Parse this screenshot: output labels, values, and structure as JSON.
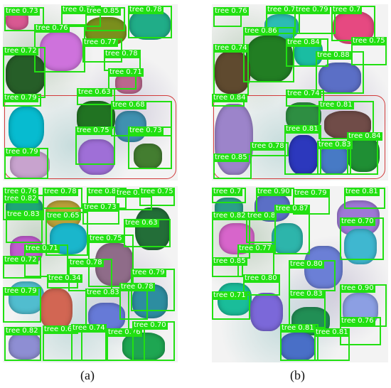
{
  "captions": {
    "a": "(a)",
    "b": "(b)"
  },
  "colors": {
    "box": "#22e012",
    "highlight": "#d23b3b"
  },
  "panels": [
    {
      "id": "a-top",
      "labels": [
        "tree 0.73",
        "tree 0.77",
        "tree 0.85",
        "tree 0.78",
        "tree 0.76",
        "tree 0.72",
        "tree 0.77",
        "tree 0.78",
        "tree 0.71",
        "tree 0.63",
        "tree 0.79",
        "tree 0.68",
        "tree 0.75",
        "tree 0.73",
        "tree 0.79"
      ]
    },
    {
      "id": "b-top",
      "labels": [
        "tree 0.76",
        "tree 0.7",
        "tree 0.79",
        "tree 0.7",
        "tree 0.86",
        "tree 0.84",
        "tree 0.74",
        "tree 0.88",
        "tree 0.75",
        "tree 0.84",
        "tree 0.74",
        "tree 0.81",
        "tree 0.81",
        "tree 0.78",
        "tree 0.84",
        "tree 0.83",
        "tree 0.85"
      ]
    },
    {
      "id": "a-bottom",
      "labels": [
        "tree 0.76",
        "tree 0.78",
        "tree 0.80",
        "tree 0.71",
        "tree 0.75",
        "tree 0.82",
        "tree 0.83",
        "tree 0.65",
        "tree 0.73",
        "tree 0.63",
        "tree 0.75",
        "tree 0.71",
        "tree 0.72",
        "tree 0.78",
        "tree 0.79",
        "tree 0.34",
        "tree 0.79",
        "tree 0.83",
        "tree 0.78",
        "tree 0.82",
        "tree 0.69",
        "tree 0.74",
        "tree 0.76",
        "tree 0.70"
      ]
    },
    {
      "id": "b-bottom",
      "labels": [
        "tree 0.7",
        "tree 0.90",
        "tree 0.79",
        "tree 0.81",
        "tree 0.82",
        "tree 0.8",
        "tree 0.87",
        "tree 0.70",
        "tree 0.77",
        "tree 0.85",
        "tree 0.80",
        "tree 0.80",
        "tree 0.71",
        "tree 0.83",
        "tree 0.90",
        "tree 0.76",
        "tree 0.81",
        "tree 0.81"
      ]
    }
  ]
}
